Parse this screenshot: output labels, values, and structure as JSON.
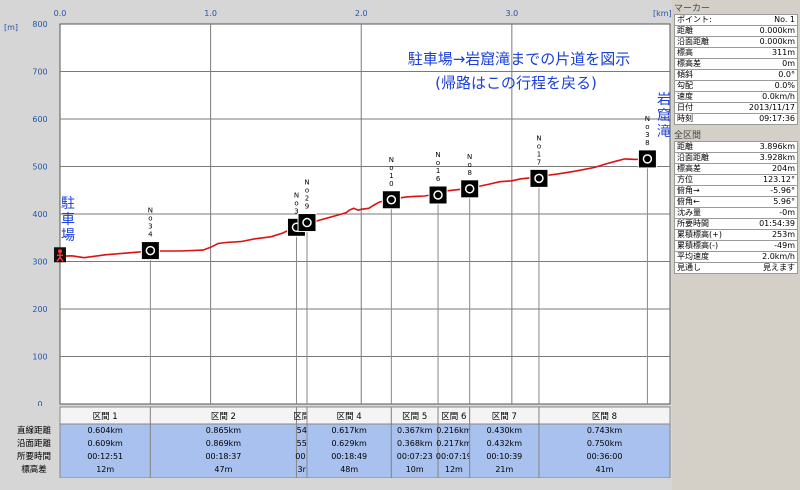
{
  "chart_data": {
    "type": "line",
    "title": "駐車場→岩窟滝までの片道を図示",
    "subtitle": "(帰路はこの行程を戻る)",
    "xlabel_unit": "[km]",
    "ylabel_unit": "[m]",
    "xlim": [
      0.0,
      4.05
    ],
    "ylim": [
      0,
      800
    ],
    "xticks": [
      {
        "v": 0.0,
        "label": "0.0"
      },
      {
        "v": 1.0,
        "label": "1.0"
      },
      {
        "v": 2.0,
        "label": "2.0"
      },
      {
        "v": 3.0,
        "label": "3.0"
      }
    ],
    "yticks": [
      {
        "v": 0,
        "label": "0"
      },
      {
        "v": 100,
        "label": "100"
      },
      {
        "v": 200,
        "label": "200"
      },
      {
        "v": 300,
        "label": "300"
      },
      {
        "v": 400,
        "label": "400"
      },
      {
        "v": 500,
        "label": "500"
      },
      {
        "v": 600,
        "label": "600"
      },
      {
        "v": 700,
        "label": "700"
      },
      {
        "v": 800,
        "label": "800"
      }
    ],
    "grid": true,
    "start_label": "駐車場",
    "end_label": "岩窟滝",
    "series": [
      {
        "color": "#dd1111",
        "points": [
          [
            0.0,
            311
          ],
          [
            0.08,
            312
          ],
          [
            0.16,
            308
          ],
          [
            0.3,
            314
          ],
          [
            0.45,
            318
          ],
          [
            0.6,
            322
          ],
          [
            0.8,
            322
          ],
          [
            0.95,
            324
          ],
          [
            1.0,
            330
          ],
          [
            1.05,
            338
          ],
          [
            1.1,
            340
          ],
          [
            1.2,
            342
          ],
          [
            1.3,
            348
          ],
          [
            1.4,
            352
          ],
          [
            1.48,
            360
          ],
          [
            1.53,
            368
          ],
          [
            1.58,
            372
          ],
          [
            1.62,
            380
          ],
          [
            1.65,
            383
          ],
          [
            1.7,
            385
          ],
          [
            1.78,
            392
          ],
          [
            1.85,
            398
          ],
          [
            1.9,
            403
          ],
          [
            1.92,
            408
          ],
          [
            1.95,
            412
          ],
          [
            1.98,
            408
          ],
          [
            2.0,
            410
          ],
          [
            2.05,
            412
          ],
          [
            2.08,
            418
          ],
          [
            2.12,
            425
          ],
          [
            2.18,
            430
          ],
          [
            2.22,
            432
          ],
          [
            2.3,
            436
          ],
          [
            2.35,
            437
          ],
          [
            2.42,
            438
          ],
          [
            2.48,
            441
          ],
          [
            2.5,
            444
          ],
          [
            2.55,
            448
          ],
          [
            2.6,
            450
          ],
          [
            2.66,
            452
          ],
          [
            2.72,
            455
          ],
          [
            2.78,
            458
          ],
          [
            2.85,
            463
          ],
          [
            2.92,
            468
          ],
          [
            3.0,
            470
          ],
          [
            3.06,
            474
          ],
          [
            3.12,
            476
          ],
          [
            3.2,
            480
          ],
          [
            3.3,
            484
          ],
          [
            3.42,
            490
          ],
          [
            3.55,
            498
          ],
          [
            3.62,
            505
          ],
          [
            3.7,
            512
          ],
          [
            3.75,
            516
          ],
          [
            3.82,
            515
          ],
          [
            3.9,
            516
          ],
          [
            3.93,
            514
          ]
        ]
      }
    ],
    "waypoints": [
      {
        "label": "No34",
        "x": 0.6,
        "y": 323
      },
      {
        "label": "No3",
        "x": 1.57,
        "y": 372
      },
      {
        "label": "No29",
        "x": 1.64,
        "y": 382
      },
      {
        "label": "No10",
        "x": 2.2,
        "y": 430
      },
      {
        "label": "No16",
        "x": 2.51,
        "y": 440
      },
      {
        "label": "No8",
        "x": 2.72,
        "y": 453
      },
      {
        "label": "No17",
        "x": 3.18,
        "y": 475
      },
      {
        "label": "No38",
        "x": 3.9,
        "y": 516
      }
    ],
    "sections": {
      "row_labels": [
        "直線距離",
        "沿面距離",
        "所要時間",
        "標高差"
      ],
      "items": [
        {
          "name": "区間 1",
          "straight": "0.604km",
          "surface": "0.609km",
          "time": "00:12:51",
          "elev": "12m",
          "x0": 0.0,
          "x1": 0.6
        },
        {
          "name": "区間 2",
          "straight": "0.865km",
          "surface": "0.869km",
          "time": "00:18:37",
          "elev": "47m",
          "x0": 0.6,
          "x1": 1.57
        },
        {
          "name": "区間",
          "straight": "54",
          "surface": "55",
          "time": "00:",
          "elev": "3r",
          "x0": 1.57,
          "x1": 1.64
        },
        {
          "name": "区間 4",
          "straight": "0.617km",
          "surface": "0.629km",
          "time": "00:18:49",
          "elev": "48m",
          "x0": 1.64,
          "x1": 2.2
        },
        {
          "name": "区間 5",
          "straight": "0.367km",
          "surface": "0.368km",
          "time": "00:07:23",
          "elev": "10m",
          "x0": 2.2,
          "x1": 2.51
        },
        {
          "name": "区間 6",
          "straight": "0.216km",
          "surface": "0.217km",
          "time": "00:07:19",
          "elev": "12m",
          "x0": 2.51,
          "x1": 2.72
        },
        {
          "name": "区間 7",
          "straight": "0.430km",
          "surface": "0.432km",
          "time": "00:10:39",
          "elev": "21m",
          "x0": 2.72,
          "x1": 3.18
        },
        {
          "name": "区間 8",
          "straight": "0.743km",
          "surface": "0.750km",
          "time": "00:36:00",
          "elev": "41m",
          "x0": 3.18,
          "x1": 4.05
        }
      ]
    }
  },
  "marker_panel": {
    "header": "マーカー",
    "rows": [
      {
        "k": "ポイント:",
        "v": "No. 1"
      },
      {
        "k": "距離",
        "v": "0.000km"
      },
      {
        "k": "沿面距離",
        "v": "0.000km"
      },
      {
        "k": "標高",
        "v": "311m"
      },
      {
        "k": "標高差",
        "v": "0m"
      },
      {
        "k": "傾斜",
        "v": "0.0°"
      },
      {
        "k": "勾配",
        "v": "0.0%"
      },
      {
        "k": "速度",
        "v": "0.0km/h"
      },
      {
        "k": "日付",
        "v": "2013/11/17"
      },
      {
        "k": "時刻",
        "v": "09:17:36"
      }
    ]
  },
  "total_panel": {
    "header": "全区間",
    "rows": [
      {
        "k": "距離",
        "v": "3.896km"
      },
      {
        "k": "沿面距離",
        "v": "3.928km"
      },
      {
        "k": "標高差",
        "v": "204m"
      },
      {
        "k": "方位",
        "v": "123.12°"
      },
      {
        "k": "俯角→",
        "v": "-5.96°"
      },
      {
        "k": "俯角←",
        "v": "5.96°"
      },
      {
        "k": "沈み量",
        "v": "-0m"
      },
      {
        "k": "所要時間",
        "v": "01:54:39"
      },
      {
        "k": "累積標高(+)",
        "v": "253m"
      },
      {
        "k": "累積標高(-)",
        "v": "-49m"
      },
      {
        "k": "平均速度",
        "v": "2.0km/h"
      },
      {
        "k": "見通し",
        "v": "見えます"
      }
    ]
  },
  "colors": {
    "plot_bg": "#ffffff",
    "outer_bg": "#d6d6d6",
    "grid": "#7a7a7a",
    "line": "#dd1111",
    "axis_label": "#2255aa",
    "title": "#1a3fd8",
    "section_header_bg": "#f4f4f4",
    "section_body_bg": "#a9c1ee"
  }
}
